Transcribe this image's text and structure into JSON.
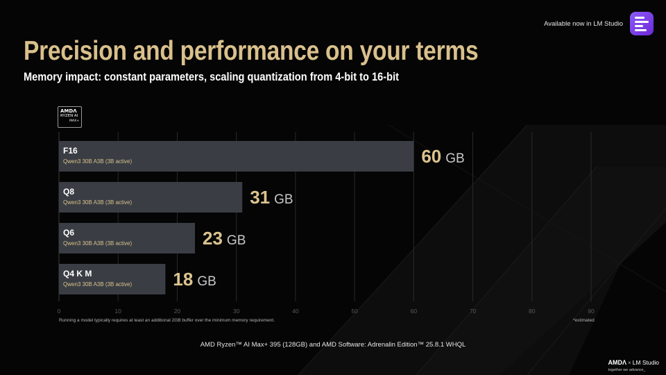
{
  "header": {
    "availability_text": "Available now in LM Studio",
    "title": "Precision and performance on your terms",
    "subtitle": "Memory impact: constant parameters, scaling quantization from 4-bit to 16-bit"
  },
  "badge": {
    "line1": "AMDΛ",
    "line2": "RYZEN AI",
    "line3": "MAX+"
  },
  "chart_data": {
    "type": "bar",
    "orientation": "horizontal",
    "categories": [
      "F16",
      "Q8",
      "Q6",
      "Q4 K M"
    ],
    "category_sublabels": [
      "Qwen3 30B A3B (3B active)",
      "Qwen3 30B A3B (3B active)",
      "Qwen3 30B A3B (3B active)",
      "Qwen3 30B A3B (3B active)"
    ],
    "values": [
      60,
      31,
      23,
      18
    ],
    "value_unit": "GB",
    "xlim": [
      0,
      90
    ],
    "xticks": [
      0,
      10,
      20,
      30,
      40,
      50,
      60,
      70,
      80,
      90
    ],
    "grid": true,
    "colors": {
      "bar": "#3a3e44",
      "value": "#dcc48e",
      "unit": "#c8c8c8",
      "sublabel": "#d9c08c",
      "grid": "#2a2a2a",
      "tick": "#5a5a5a"
    }
  },
  "footnote": "Running a model typically requires at least  an additional 2GB buffer over the minimum memory requirement.",
  "estimated_note": "*estimated",
  "system_config": "AMD Ryzen™ AI Max+ 395 (128GB) and AMD Software: Adrenalin Edition™ 25.8.1 WHQL",
  "brand": {
    "amd": "AMDΛ",
    "separator": "×",
    "lm": "LM Studio",
    "tagline": "together we advance_"
  },
  "colors": {
    "title": "#d9c08c",
    "background": "#050505",
    "lm_logo": "#7c3aed"
  }
}
